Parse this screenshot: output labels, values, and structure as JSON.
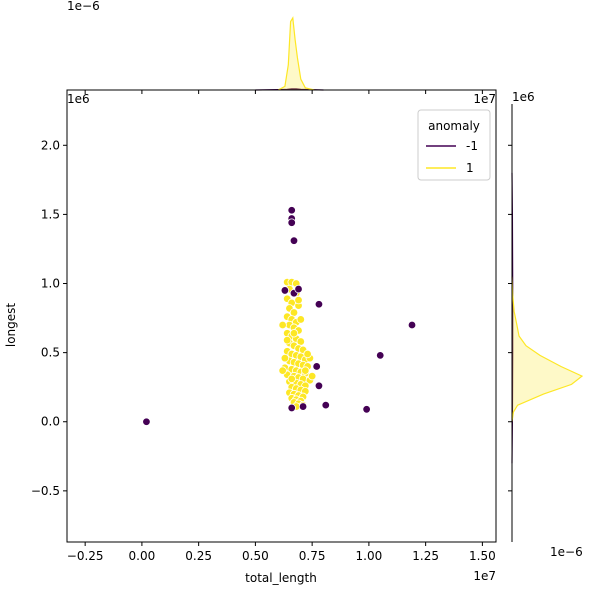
{
  "chart_data": {
    "type": "scatter",
    "x_axis": {
      "label": "total_length",
      "lim": [
        -0.33,
        1.56
      ],
      "ticks": [
        -0.25,
        0.0,
        0.25,
        0.5,
        0.75,
        1.0,
        1.25,
        1.5
      ],
      "tick_labels": [
        "−0.25",
        "0.00",
        "0.25",
        "0.50",
        "0.75",
        "1.00",
        "1.25",
        "1.50"
      ],
      "offset_label": "1e7"
    },
    "y_axis": {
      "label": "longest",
      "lim": [
        -0.87,
        2.4
      ],
      "ticks": [
        -0.5,
        0.0,
        0.5,
        1.0,
        1.5,
        2.0
      ],
      "tick_labels": [
        "−0.5",
        "0.0",
        "0.5",
        "1.0",
        "1.5",
        "2.0"
      ],
      "offset_label": "1e6"
    },
    "marginal_labels": {
      "top_density": "1e−6",
      "top_xaxis": "1e7",
      "right_yaxis": "1e6",
      "right_density": "1e−6"
    },
    "legend": {
      "title": "anomaly",
      "position": "top-right",
      "entries": [
        {
          "label": "-1",
          "color": "#440154"
        },
        {
          "label": "1",
          "color": "#fde725"
        }
      ]
    },
    "series": [
      {
        "name": "-1",
        "color": "#440154",
        "points": [
          [
            0.66,
            1.53
          ],
          [
            0.66,
            1.47
          ],
          [
            0.66,
            1.44
          ],
          [
            0.67,
            1.31
          ],
          [
            0.67,
            0.93
          ],
          [
            0.63,
            0.95
          ],
          [
            0.78,
            0.85
          ],
          [
            1.19,
            0.7
          ],
          [
            1.05,
            0.48
          ],
          [
            0.77,
            0.4
          ],
          [
            0.78,
            0.26
          ],
          [
            0.81,
            0.12
          ],
          [
            0.99,
            0.09
          ],
          [
            0.71,
            0.11
          ],
          [
            0.66,
            0.1
          ],
          [
            0.02,
            0.0
          ],
          [
            0.69,
            0.96
          ]
        ]
      },
      {
        "name": "1",
        "color": "#fde725",
        "points": [
          [
            0.64,
            1.01
          ],
          [
            0.66,
            1.01
          ],
          [
            0.68,
            1.0
          ],
          [
            0.65,
            0.96
          ],
          [
            0.68,
            0.93
          ],
          [
            0.64,
            0.89
          ],
          [
            0.66,
            0.86
          ],
          [
            0.69,
            0.84
          ],
          [
            0.65,
            0.82
          ],
          [
            0.67,
            0.79
          ],
          [
            0.64,
            0.76
          ],
          [
            0.66,
            0.74
          ],
          [
            0.68,
            0.72
          ],
          [
            0.65,
            0.7
          ],
          [
            0.67,
            0.68
          ],
          [
            0.69,
            0.66
          ],
          [
            0.64,
            0.64
          ],
          [
            0.66,
            0.62
          ],
          [
            0.68,
            0.6
          ],
          [
            0.7,
            0.58
          ],
          [
            0.65,
            0.57
          ],
          [
            0.67,
            0.55
          ],
          [
            0.69,
            0.53
          ],
          [
            0.71,
            0.52
          ],
          [
            0.64,
            0.51
          ],
          [
            0.66,
            0.49
          ],
          [
            0.68,
            0.48
          ],
          [
            0.7,
            0.47
          ],
          [
            0.72,
            0.45
          ],
          [
            0.65,
            0.44
          ],
          [
            0.67,
            0.43
          ],
          [
            0.69,
            0.42
          ],
          [
            0.71,
            0.41
          ],
          [
            0.73,
            0.4
          ],
          [
            0.63,
            0.39
          ],
          [
            0.66,
            0.38
          ],
          [
            0.68,
            0.37
          ],
          [
            0.7,
            0.36
          ],
          [
            0.72,
            0.35
          ],
          [
            0.64,
            0.34
          ],
          [
            0.67,
            0.33
          ],
          [
            0.69,
            0.32
          ],
          [
            0.71,
            0.31
          ],
          [
            0.74,
            0.3
          ],
          [
            0.65,
            0.29
          ],
          [
            0.68,
            0.28
          ],
          [
            0.7,
            0.27
          ],
          [
            0.72,
            0.26
          ],
          [
            0.66,
            0.25
          ],
          [
            0.68,
            0.24
          ],
          [
            0.7,
            0.23
          ],
          [
            0.72,
            0.22
          ],
          [
            0.65,
            0.21
          ],
          [
            0.67,
            0.2
          ],
          [
            0.69,
            0.19
          ],
          [
            0.71,
            0.18
          ],
          [
            0.66,
            0.17
          ],
          [
            0.68,
            0.16
          ],
          [
            0.7,
            0.15
          ],
          [
            0.67,
            0.14
          ],
          [
            0.69,
            0.13
          ],
          [
            0.71,
            0.12
          ],
          [
            0.68,
            0.11
          ],
          [
            0.62,
            0.37
          ],
          [
            0.63,
            0.46
          ],
          [
            0.75,
            0.33
          ],
          [
            0.74,
            0.46
          ],
          [
            0.73,
            0.49
          ],
          [
            0.62,
            0.7
          ],
          [
            0.7,
            0.74
          ],
          [
            0.69,
            0.88
          ],
          [
            0.72,
            0.37
          ],
          [
            0.66,
            0.31
          ],
          [
            0.64,
            0.59
          ],
          [
            0.67,
            0.64
          ]
        ]
      }
    ],
    "marginal_top": {
      "series": [
        {
          "name": "-1",
          "color": "#440154",
          "x": [
            0.5,
            0.6,
            0.64,
            0.66,
            0.68,
            0.7,
            0.74,
            0.8
          ],
          "density": [
            0.0,
            0.005,
            0.01,
            0.015,
            0.015,
            0.01,
            0.005,
            0.0
          ]
        },
        {
          "name": "1",
          "color": "#fde725",
          "x": [
            0.6,
            0.63,
            0.645,
            0.655,
            0.665,
            0.675,
            0.685,
            0.7,
            0.72,
            0.76
          ],
          "density": [
            0.0,
            0.05,
            0.35,
            0.95,
            1.0,
            0.7,
            0.45,
            0.15,
            0.03,
            0.0
          ]
        }
      ]
    },
    "marginal_right": {
      "series": [
        {
          "name": "-1",
          "color": "#440154",
          "y": [
            -0.3,
            0.0,
            0.5,
            1.0,
            1.5,
            1.8
          ],
          "density": [
            0.0,
            0.005,
            0.01,
            0.01,
            0.005,
            0.0
          ]
        },
        {
          "name": "1",
          "color": "#fde725",
          "y": [
            0.0,
            0.07,
            0.12,
            0.2,
            0.27,
            0.33,
            0.4,
            0.48,
            0.55,
            0.62,
            0.7,
            0.8,
            0.92,
            1.05
          ],
          "density": [
            0.0,
            0.02,
            0.08,
            0.45,
            0.85,
            1.0,
            0.7,
            0.4,
            0.2,
            0.1,
            0.07,
            0.03,
            0.01,
            0.0
          ]
        }
      ]
    }
  }
}
